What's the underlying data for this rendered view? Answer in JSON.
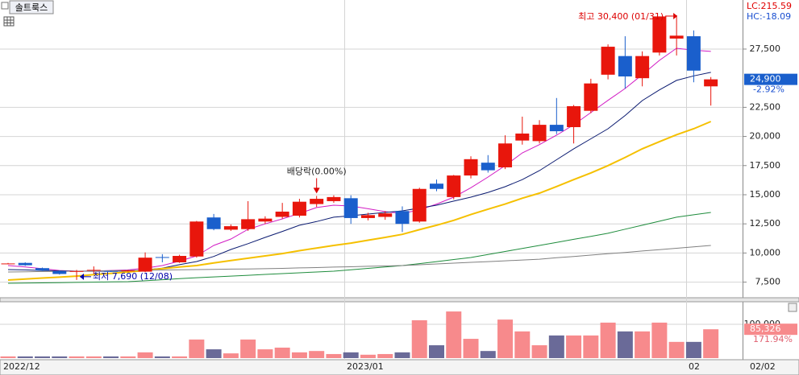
{
  "chart_data": {
    "type": "candlestick",
    "symbol": "솔트룩스",
    "lc_label": "LC:215.59",
    "hc_label": "HC:-18.09",
    "x_labels": [
      "2022/12",
      "2023/01",
      "02"
    ],
    "current_date": "02/02",
    "candles": {
      "open": [
        9100,
        9150,
        8700,
        8450,
        8400,
        8550,
        8450,
        8450,
        8400,
        9650,
        9200,
        9700,
        13050,
        12000,
        12050,
        12700,
        13100,
        13200,
        14200,
        14450,
        14700,
        13000,
        13100,
        13600,
        12700,
        15950,
        14800,
        16650,
        17750,
        17350,
        19650,
        19600,
        21000,
        20800,
        22200,
        25300,
        26900,
        25000,
        27200,
        28400,
        28600,
        24300
      ],
      "high": [
        9150,
        9200,
        8750,
        8500,
        8550,
        8850,
        8500,
        8550,
        10050,
        9900,
        9850,
        12750,
        13350,
        12450,
        14450,
        13150,
        14300,
        14650,
        14900,
        14950,
        14950,
        13450,
        13600,
        14000,
        15600,
        16300,
        16700,
        18300,
        18400,
        20100,
        21700,
        21400,
        23300,
        22700,
        24950,
        27900,
        28600,
        27300,
        30300,
        30400,
        29100,
        25100
      ],
      "low": [
        9050,
        8900,
        8450,
        8150,
        7690,
        8200,
        8380,
        8400,
        8350,
        9200,
        9150,
        9600,
        11950,
        11900,
        11900,
        12500,
        12950,
        13050,
        13950,
        14300,
        12500,
        12800,
        12850,
        11800,
        12600,
        15300,
        14600,
        16400,
        16900,
        17200,
        19300,
        19400,
        20200,
        19400,
        22000,
        24900,
        24100,
        24300,
        26950,
        26950,
        24650,
        22650
      ],
      "close": [
        9100,
        8950,
        8500,
        8200,
        8450,
        8550,
        8420,
        8500,
        9600,
        9600,
        9750,
        12700,
        12050,
        12300,
        12900,
        12950,
        13550,
        14400,
        14650,
        14800,
        13000,
        13250,
        13400,
        12500,
        15500,
        15500,
        16650,
        18050,
        17100,
        19400,
        20250,
        21000,
        20450,
        22600,
        24550,
        27700,
        25150,
        26900,
        30300,
        28650,
        25650,
        24900
      ],
      "up_color": "#e8160c",
      "down_color": "#1a5fcc"
    },
    "moving_averages": [
      {
        "color": "#d21cc4",
        "values": [
          8920,
          8800,
          8650,
          8500,
          8440,
          8450,
          8500,
          8550,
          8700,
          8920,
          9300,
          9750,
          10650,
          11200,
          12030,
          12500,
          12930,
          13400,
          13900,
          14100,
          14030,
          13800,
          13550,
          13400,
          13700,
          14200,
          14790,
          15600,
          16520,
          17500,
          18590,
          19300,
          20110,
          21000,
          22050,
          23100,
          24120,
          25300,
          26530,
          27570,
          27400,
          27300
        ]
      },
      {
        "color": "#0a1a70",
        "values": [
          8580,
          8550,
          8500,
          8470,
          8440,
          8440,
          8440,
          8450,
          8550,
          8700,
          9000,
          9270,
          9700,
          10300,
          10800,
          11340,
          11850,
          12380,
          12700,
          13070,
          13200,
          13340,
          13480,
          13620,
          13850,
          14100,
          14450,
          14790,
          15200,
          15690,
          16300,
          17070,
          18000,
          18940,
          19800,
          20660,
          21800,
          23080,
          24000,
          24810,
          25200,
          25500
        ]
      },
      {
        "color": "#f5c000",
        "values": [
          7680,
          7770,
          7850,
          7930,
          8020,
          8140,
          8250,
          8370,
          8500,
          8650,
          8800,
          8920,
          9150,
          9350,
          9550,
          9750,
          9950,
          10200,
          10430,
          10650,
          10850,
          11100,
          11340,
          11600,
          12000,
          12380,
          12800,
          13300,
          13760,
          14200,
          14700,
          15140,
          15700,
          16300,
          16870,
          17500,
          18200,
          18940,
          19550,
          20150,
          20660,
          21280
        ]
      },
      {
        "color": "#1e8c3c",
        "values": [
          7400,
          7420,
          7440,
          7460,
          7480,
          7500,
          7520,
          7540,
          7620,
          7710,
          7800,
          7880,
          7950,
          8020,
          8090,
          8160,
          8230,
          8300,
          8370,
          8440,
          8560,
          8680,
          8800,
          8920,
          9090,
          9260,
          9440,
          9610,
          9870,
          10130,
          10390,
          10650,
          10910,
          11170,
          11430,
          11690,
          12040,
          12380,
          12730,
          13070,
          13280,
          13480
        ]
      },
      {
        "color": "#808080",
        "values": [
          8370,
          8390,
          8410,
          8430,
          8440,
          8460,
          8480,
          8500,
          8520,
          8540,
          8560,
          8580,
          8600,
          8620,
          8630,
          8650,
          8680,
          8720,
          8750,
          8790,
          8820,
          8860,
          8890,
          8920,
          8990,
          9060,
          9130,
          9200,
          9260,
          9330,
          9400,
          9470,
          9590,
          9700,
          9820,
          9940,
          10050,
          10170,
          10290,
          10410,
          10530,
          10650
        ]
      }
    ],
    "ylim": [
      6160,
      31710
    ],
    "yticks": [
      {
        "value": 7500,
        "label": "7,500"
      },
      {
        "value": 10000,
        "label": "10,000"
      },
      {
        "value": 12500,
        "label": "12,500"
      },
      {
        "value": 15000,
        "label": "15,000"
      },
      {
        "value": 17500,
        "label": "17,500"
      },
      {
        "value": 20000,
        "label": "20,000"
      },
      {
        "value": 22500,
        "label": "22,500"
      },
      {
        "value": 27500,
        "label": "27,500"
      }
    ],
    "last_price": {
      "value": 24900,
      "label": "24,900"
    },
    "change_label": "-2.92%",
    "high_marker": {
      "value": 30400,
      "label": "최고 30,400 (01/31)"
    },
    "low_marker": {
      "value": 7690,
      "label": "최저 7,690 (12/08)"
    },
    "event_label": "배당락(0.00%)",
    "volume": {
      "values": [
        5000,
        5000,
        5000,
        5000,
        5000,
        5000,
        5000,
        5000,
        17000,
        5000,
        5000,
        55000,
        26000,
        14000,
        55000,
        26000,
        31000,
        17000,
        21000,
        12000,
        17000,
        10000,
        12000,
        17000,
        112000,
        38000,
        138000,
        57000,
        21000,
        114000,
        79000,
        38000,
        67000,
        67000,
        67000,
        105000,
        79000,
        79000,
        105000,
        48000,
        48000,
        85326
      ],
      "up_color": "#f78a8c",
      "down_color": "#6a6a98",
      "ylim": [
        0,
        166700
      ],
      "yticks": [
        {
          "value": 100000,
          "label": "100,000"
        }
      ],
      "last": {
        "value": 85326,
        "label": "85,326"
      },
      "ratio_label": "171.94%"
    }
  }
}
